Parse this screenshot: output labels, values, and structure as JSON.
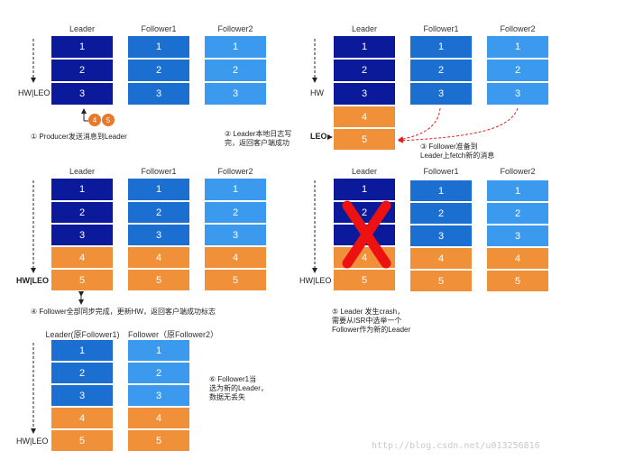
{
  "colors": {
    "dark": "#0a1a9a",
    "mid": "#1a6fd0",
    "light": "#3b9aee",
    "orange": "#f0913a",
    "red": "#ee1111"
  },
  "headers": {
    "leader": "Leader",
    "follower1": "Follower1",
    "follower2": "Follower2",
    "leader_new": "Leader(原Follower1)",
    "follower_new": "Follower（原Follower2）"
  },
  "nums": [
    "1",
    "2",
    "3",
    "4",
    "5"
  ],
  "side": {
    "hwleo": "HW|LEO",
    "hw": "HW",
    "leo": "LEO"
  },
  "bubbles": [
    "4",
    "5"
  ],
  "notes": {
    "n1": "① Producer发送消息到Leader",
    "n2a": "② Leader本地日志写",
    "n2b": "完，返回客户端成功",
    "n3a": "③ Follower准备到",
    "n3b": "Leader上fetch新的消息",
    "n4": "④ Follower全部同步完成，更新HW，返回客户端成功标志",
    "n5a": "⑤ Leader 发生crash，",
    "n5b": "需要从ISR中选举一个",
    "n5c": "Follower作为新的Leader",
    "n6a": "⑥ Follower1当",
    "n6b": "选为新的Leader，",
    "n6c": "数据无丢失"
  },
  "watermark": "http://blog.csdn.net/u013256816"
}
